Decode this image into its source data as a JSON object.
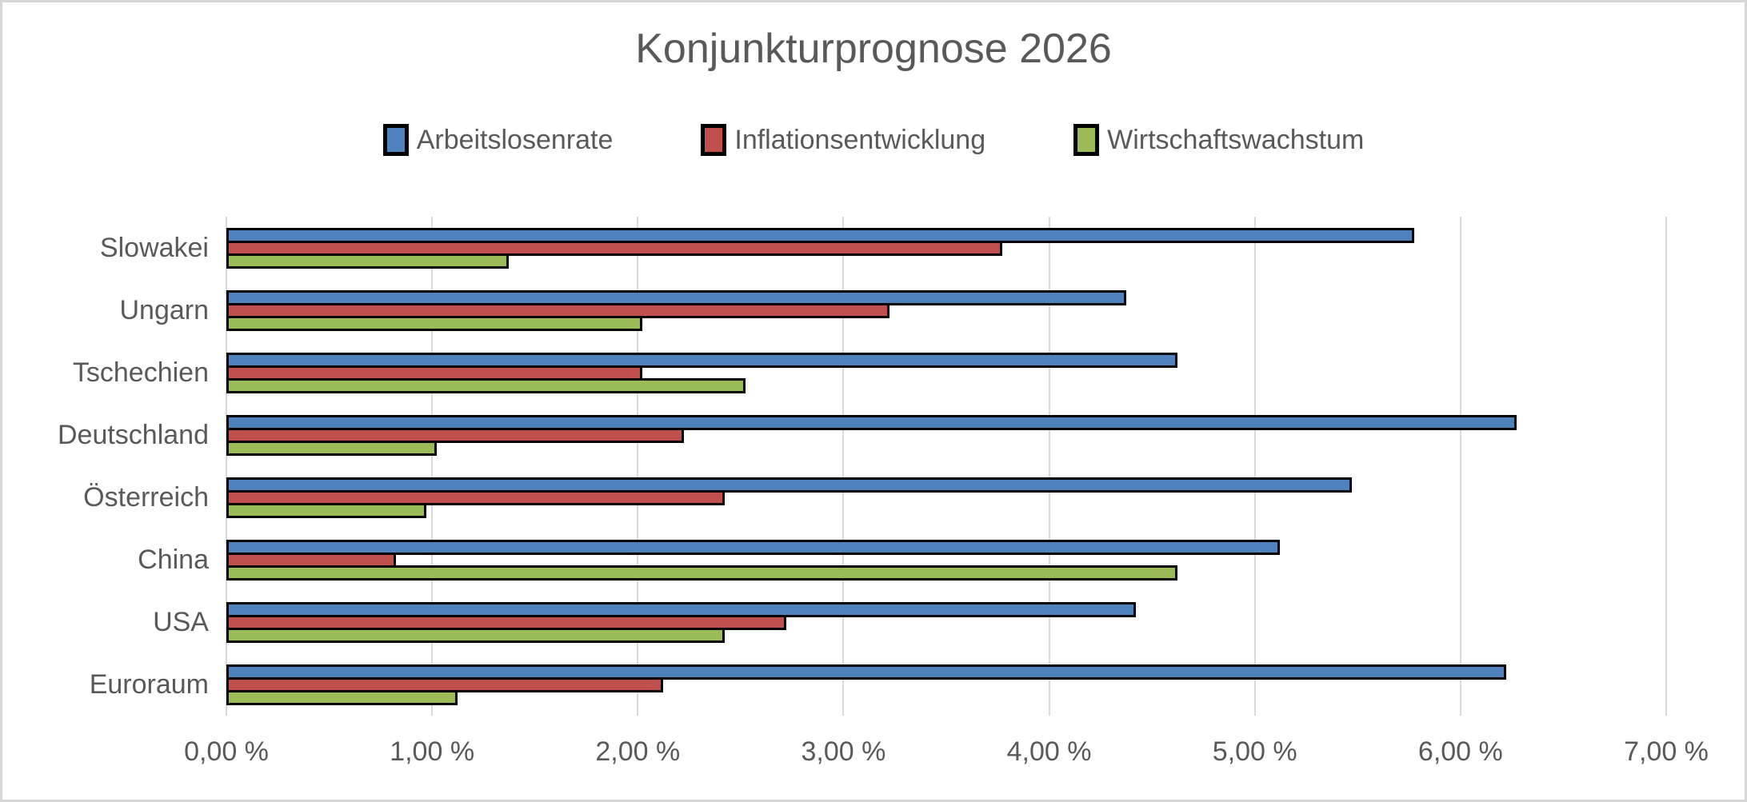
{
  "title": "Konjunkturprognose 2026",
  "chart_data": {
    "type": "bar",
    "orientation": "horizontal",
    "title": "Konjunkturprognose 2026",
    "categories": [
      "Slowakei",
      "Ungarn",
      "Tschechien",
      "Deutschland",
      "Österreich",
      "China",
      "USA",
      "Euroraum"
    ],
    "series": [
      {
        "name": "Arbeitslosenrate",
        "color": "#4F81BD",
        "values": [
          5.75,
          4.35,
          4.6,
          6.25,
          5.45,
          5.1,
          4.4,
          6.2
        ]
      },
      {
        "name": "Inflationsentwicklung",
        "color": "#C0504D",
        "values": [
          3.75,
          3.2,
          2.0,
          2.2,
          2.4,
          0.8,
          2.7,
          2.1
        ]
      },
      {
        "name": "Wirtschaftswachstum",
        "color": "#9BBB59",
        "values": [
          1.35,
          2.0,
          2.5,
          1.0,
          0.95,
          4.6,
          2.4,
          1.1
        ]
      }
    ],
    "xlabel": "",
    "ylabel": "",
    "xlim": [
      0,
      7
    ],
    "x_tick_step": 1,
    "x_tick_labels": [
      "0,00 %",
      "1,00 %",
      "2,00 %",
      "3,00 %",
      "4,00 %",
      "5,00 %",
      "6,00 %",
      "7,00 %"
    ],
    "grid": true,
    "legend_position": "top-center",
    "bar_border_color": "#000000",
    "gridline_color": "#D9D9D9",
    "text_color": "#595959",
    "background_color": "#FFFFFF",
    "frame_border_color": "#D6D6D6"
  }
}
